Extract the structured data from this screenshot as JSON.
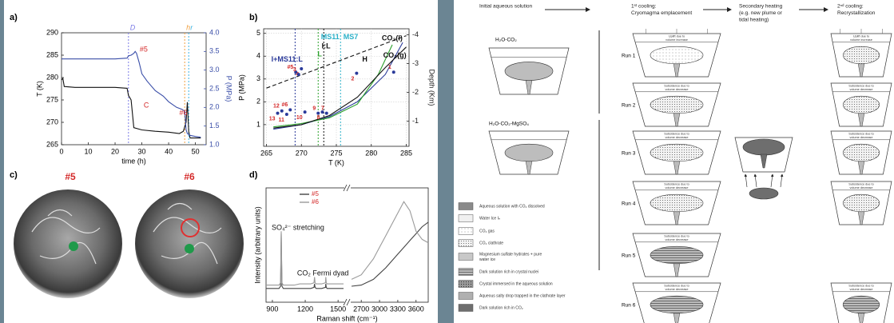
{
  "chart_data": [
    {
      "type": "line",
      "label": "a)",
      "xlabel": "time (h)",
      "ylabel": "T (K)",
      "y2label": "P (MPa)",
      "y2color": "#3a4ea8",
      "xlim": [
        0,
        54
      ],
      "xticks": [
        0,
        10,
        20,
        30,
        40,
        50
      ],
      "ylim": [
        265,
        290
      ],
      "yticks": [
        265,
        270,
        275,
        280,
        285,
        290
      ],
      "y2lim": [
        1,
        4
      ],
      "y2ticks": [
        {
          "value": 1,
          "label": "1.0"
        },
        {
          "value": 1.5,
          "label": "1.5"
        },
        {
          "value": 2,
          "label": "2.0"
        },
        {
          "value": 2.5,
          "label": "2.5"
        },
        {
          "value": 3,
          "label": "3.0"
        },
        {
          "value": 3.5,
          "label": "3.5"
        },
        {
          "value": 4,
          "label": "4.0"
        }
      ],
      "series": [
        {
          "color": "#111111",
          "x": [
            0,
            0.5,
            1,
            5,
            10,
            15,
            20,
            24.5,
            25,
            25.5,
            26,
            27,
            30,
            35,
            40,
            44,
            45.5,
            46.5,
            47,
            47.5,
            48,
            50,
            52
          ],
          "values": [
            279.5,
            279.8,
            278,
            277.8,
            277.8,
            277.8,
            277.8,
            277.6,
            276,
            275.5,
            275,
            268.8,
            268.3,
            268,
            267.8,
            267.5,
            268,
            270,
            274.5,
            268,
            266.5,
            266.5,
            266.5
          ]
        },
        {
          "color": "#3a4ea8",
          "axis": "y2",
          "x": [
            0,
            2,
            5,
            10,
            15,
            20,
            24.5,
            25,
            26,
            27,
            27.5,
            28,
            29,
            30,
            32,
            35,
            38,
            40,
            43,
            45,
            46,
            46.5,
            47,
            48,
            50,
            52
          ],
          "values": [
            3.3,
            3.3,
            3.3,
            3.3,
            3.3,
            3.3,
            3.32,
            3.38,
            3.4,
            3.45,
            3.5,
            3.45,
            3.2,
            2.9,
            2.7,
            2.45,
            2.3,
            2.15,
            2.0,
            1.95,
            1.9,
            1.4,
            1.3,
            1.25,
            1.22,
            1.2
          ]
        }
      ],
      "vlines": [
        {
          "x": 25,
          "label": "D",
          "color": "#7d7de6"
        },
        {
          "x": 46,
          "label": "h",
          "color": "#f0a040"
        },
        {
          "x": 47.5,
          "label": "r",
          "color": "#3cb4e6"
        }
      ],
      "annotations": [
        {
          "text": "#5",
          "x": 29.2,
          "y": 3.55,
          "axis": "y2",
          "color": "#d42a2a"
        },
        {
          "text": "#6",
          "x": 44,
          "y": 1.84,
          "axis": "y2",
          "color": "#d42a2a"
        },
        {
          "text": "C",
          "x": 30.7,
          "y": 2.05,
          "axis": "y2",
          "color": "#d42a2a"
        }
      ]
    },
    {
      "type": "line",
      "label": "b)",
      "xlabel": "T (K)",
      "ylabel": "P (MPa)",
      "y2label": "Depth (Km)",
      "grid": true,
      "xlim": [
        264.6,
        285.4
      ],
      "xticks": [
        265,
        270,
        275,
        280,
        285
      ],
      "ylim": [
        0.05,
        5.2
      ],
      "yticks": [
        1,
        2,
        3,
        4,
        5
      ],
      "y2lim": [
        -0.13,
        -4.21
      ],
      "y2ticks": [
        -1,
        -2,
        -3,
        -4
      ],
      "series": [
        {
          "color": "#111111",
          "dash": true,
          "x": [
            265,
            285
          ],
          "values": [
            2.6,
            4.9
          ]
        },
        {
          "color": "#2a3a9a",
          "x": [
            266,
            270,
            274,
            278,
            282,
            284.5
          ],
          "values": [
            0.8,
            1.0,
            1.35,
            2.0,
            3.2,
            4.6
          ]
        },
        {
          "color": "#2aa02a",
          "x": [
            266,
            270,
            274,
            278,
            281,
            283
          ],
          "values": [
            0.9,
            1.05,
            1.3,
            1.9,
            3.2,
            4.5
          ]
        },
        {
          "color": "#111111",
          "x": [
            266,
            270,
            274,
            278,
            282,
            285
          ],
          "values": [
            0.85,
            1.0,
            1.4,
            2.2,
            3.5,
            4.4
          ]
        }
      ],
      "vlines": [
        {
          "x": 269.1,
          "color": "#2a3a9a"
        },
        {
          "x": 272.4,
          "color": "#2aa02a"
        },
        {
          "x": 273.2,
          "color": "#111111"
        },
        {
          "x": 275.6,
          "color": "#2ab0c8"
        }
      ],
      "annotations": [
        {
          "text": "I+MS11:L",
          "x": 265.7,
          "y": 3.84,
          "color": "#2a3a9a"
        },
        {
          "text": "MS11",
          "x": 272.8,
          "y": 4.82,
          "color": "#2ab0c8"
        },
        {
          "text": "MS7",
          "x": 276.0,
          "y": 4.82,
          "color": "#2ab0c8"
        },
        {
          "text": "I:L",
          "x": 272.9,
          "y": 4.43,
          "color": "#111111"
        },
        {
          "text": "L",
          "x": 272.3,
          "y": 4.08,
          "color": "#2aa02a"
        },
        {
          "text": "H",
          "x": 278.7,
          "y": 3.84,
          "color": "#111111"
        },
        {
          "text": "CO₂(l)",
          "x": 281.5,
          "y": 4.78,
          "color": "#111111"
        },
        {
          "text": "CO₂(g)",
          "x": 281.7,
          "y": 4.02,
          "color": "#111111"
        }
      ],
      "points": {
        "color": "#2a3a9a",
        "label_color": "#d42a2a",
        "x": [
          269.2,
          270.0,
          269.6,
          277.9,
          283.2,
          266.6,
          267.2,
          267.9,
          268.4,
          270.5,
          272.4,
          273.0,
          273.6
        ],
        "values": [
          3.3,
          3.45,
          3.2,
          3.25,
          3.3,
          1.5,
          1.6,
          1.45,
          1.65,
          1.55,
          1.5,
          1.55,
          1.5
        ],
        "labels": [
          "#5",
          "4",
          "3",
          "2",
          "1",
          "13",
          "12",
          "11",
          "#6",
          "10",
          "9",
          "8",
          "7"
        ]
      }
    },
    {
      "type": "line",
      "label": "d)",
      "xlabel": "Raman shift (cm⁻¹)",
      "ylabel": "Intensity (arbitrary units)",
      "xlim": [
        [
          842,
          1550
        ],
        [
          2540,
          3800
        ]
      ],
      "xticks": [
        [
          900,
          1200,
          1500
        ],
        [
          2700,
          3000,
          3300,
          3600
        ]
      ],
      "ylim": [
        0,
        100
      ],
      "series": [
        {
          "name": "#5",
          "color": "#444444",
          "x": [
            842,
            900,
            960,
            975,
            981,
            987,
            1000,
            1050,
            1100,
            1150,
            1200,
            1250,
            1280,
            1285,
            1290,
            1300,
            1350,
            1385,
            1388,
            1392,
            1400,
            1450,
            1500,
            1550,
            null,
            2540,
            2700,
            2900,
            3000,
            3100,
            3200,
            3300,
            3400,
            3500,
            3600,
            3700,
            3800
          ],
          "values": [
            12,
            12,
            12,
            14,
            60,
            14,
            12,
            12,
            12,
            12,
            12,
            12,
            13,
            16,
            13,
            12,
            12,
            13,
            16,
            13,
            12,
            12,
            12,
            12,
            null,
            14,
            15,
            20,
            25,
            30,
            36,
            42,
            48,
            54,
            60,
            66,
            70
          ]
        },
        {
          "name": "#6",
          "color": "#9a9a9a",
          "x": [
            842,
            900,
            960,
            975,
            981,
            987,
            1000,
            1050,
            1100,
            1150,
            1200,
            1250,
            1280,
            1285,
            1290,
            1300,
            1350,
            1385,
            1388,
            1392,
            1400,
            1450,
            1500,
            1550,
            null,
            2540,
            2700,
            2900,
            3000,
            3100,
            3200,
            3300,
            3400,
            3500,
            3600,
            3700,
            3800
          ],
          "values": [
            15,
            15,
            15,
            17,
            62,
            17,
            15,
            15,
            15,
            16,
            16,
            16,
            17,
            22,
            17,
            16,
            16,
            17,
            22,
            17,
            16,
            16,
            16,
            16,
            null,
            20,
            24,
            38,
            48,
            58,
            68,
            78,
            88,
            80,
            62,
            55,
            52
          ]
        }
      ],
      "annotations": [
        {
          "text": "SO₄²⁻ stretching",
          "x": 893,
          "y": 65,
          "color": "#111111"
        },
        {
          "text": "CO₂ Fermi dyad",
          "x": 1126,
          "y": 25,
          "color": "#111111"
        }
      ]
    }
  ],
  "photos": {
    "label": "c)",
    "items": [
      "#5",
      "#6"
    ]
  },
  "diagram": {
    "headers": [
      [
        "Initial aqueous solution"
      ],
      [
        "1ˢᵗ cooling:",
        "Cryomagma emplacement"
      ],
      [
        "Secondary heating",
        "(e.g. new plume or",
        "tidal heating)"
      ],
      [
        "2ⁿᵈ cooling:",
        "Recrystallization"
      ]
    ],
    "solutions": [
      "H₂O-CO₂",
      "H₂O-CO₂-MgSO₄"
    ],
    "runs": [
      "Run 1",
      "Run 2",
      "Run 3",
      "Run 4",
      "Run 5",
      "Run 6"
    ],
    "first_cooling_notes": [
      [
        "Uplift due to",
        "volume increase"
      ],
      [
        "Subsidence due to",
        "volume decrease"
      ],
      [
        "Subsidence due to",
        "volume decrease"
      ],
      [
        "Subsidence due to",
        "volume decrease"
      ],
      [
        "Subsidence due to",
        "volume decrease"
      ],
      [
        "Subsidence due to",
        "volume decrease"
      ]
    ],
    "second_cooling_notes": [
      [
        "Uplift due to",
        "volume increase"
      ],
      [
        "Subsidence due to",
        "volume decrease"
      ],
      [
        "Subsidence due to",
        "volume decrease"
      ],
      [
        "Subsidence due to",
        "volume decrease"
      ],
      null,
      [
        "Subsidence due to",
        "volume decrease"
      ]
    ],
    "legend": [
      [
        "Aqueous solution with CO₂ dissolved"
      ],
      [
        "Water Ice Iₕ"
      ],
      [
        "CO₂ gas"
      ],
      [
        "CO₂ clathrate"
      ],
      [
        "Magnesium sulfate hydrates + pure",
        "water ice"
      ],
      [
        "Dark solution rich in crystal nuclei"
      ],
      [
        "Crystal immersed in the aqueous solution"
      ],
      [
        "Aqueous salty drop trapped in the clathrate layer"
      ],
      [
        "Dark solution rich in CO₂"
      ]
    ]
  }
}
